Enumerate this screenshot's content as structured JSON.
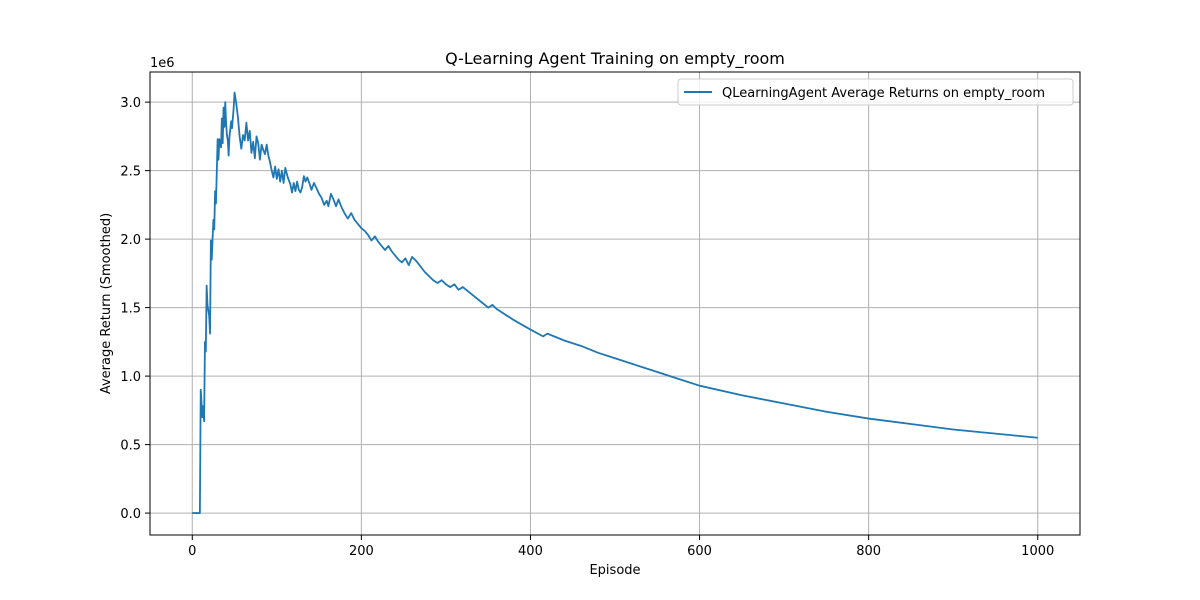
{
  "chart_data": {
    "type": "line",
    "title": "Q-Learning Agent Training on empty_room",
    "xlabel": "Episode",
    "ylabel": "Average Return (Smoothed)",
    "y_scale_label": "1e6",
    "xlim": [
      -50,
      1050
    ],
    "ylim": [
      -0.16,
      3.22
    ],
    "x_ticks": [
      0,
      200,
      400,
      600,
      800,
      1000
    ],
    "x_tick_labels": [
      "0",
      "200",
      "400",
      "600",
      "800",
      "1000"
    ],
    "y_ticks": [
      0.0,
      0.5,
      1.0,
      1.5,
      2.0,
      2.5,
      3.0
    ],
    "y_tick_labels": [
      "0.0",
      "0.5",
      "1.0",
      "1.5",
      "2.0",
      "2.5",
      "3.0"
    ],
    "grid": true,
    "legend_position": "top-right",
    "color": "#1f77b4",
    "series": [
      {
        "name": "QLearningAgent Average Returns on empty_room",
        "points": [
          [
            0,
            0.0
          ],
          [
            9,
            0.0
          ],
          [
            10,
            0.9
          ],
          [
            12,
            0.7
          ],
          [
            13,
            0.78
          ],
          [
            14,
            0.67
          ],
          [
            15,
            1.25
          ],
          [
            16,
            1.18
          ],
          [
            17,
            1.66
          ],
          [
            18,
            1.52
          ],
          [
            20,
            1.44
          ],
          [
            21,
            1.31
          ],
          [
            22,
            1.99
          ],
          [
            23,
            1.85
          ],
          [
            24,
            2.0
          ],
          [
            25,
            2.14
          ],
          [
            26,
            2.07
          ],
          [
            27,
            2.35
          ],
          [
            28,
            2.26
          ],
          [
            30,
            2.73
          ],
          [
            31,
            2.58
          ],
          [
            32,
            2.73
          ],
          [
            34,
            2.67
          ],
          [
            35,
            2.88
          ],
          [
            36,
            2.7
          ],
          [
            37,
            2.96
          ],
          [
            38,
            2.82
          ],
          [
            39,
            3.0
          ],
          [
            40,
            2.85
          ],
          [
            41,
            2.76
          ],
          [
            42,
            2.72
          ],
          [
            43,
            2.61
          ],
          [
            44,
            2.75
          ],
          [
            46,
            2.86
          ],
          [
            47,
            2.81
          ],
          [
            49,
            2.96
          ],
          [
            50,
            3.07
          ],
          [
            52,
            2.99
          ],
          [
            54,
            2.89
          ],
          [
            56,
            2.75
          ],
          [
            58,
            2.66
          ],
          [
            60,
            2.76
          ],
          [
            62,
            2.72
          ],
          [
            64,
            2.85
          ],
          [
            66,
            2.72
          ],
          [
            68,
            2.79
          ],
          [
            70,
            2.63
          ],
          [
            72,
            2.71
          ],
          [
            74,
            2.59
          ],
          [
            76,
            2.75
          ],
          [
            78,
            2.7
          ],
          [
            80,
            2.58
          ],
          [
            82,
            2.69
          ],
          [
            84,
            2.65
          ],
          [
            86,
            2.62
          ],
          [
            88,
            2.69
          ],
          [
            90,
            2.61
          ],
          [
            92,
            2.56
          ],
          [
            94,
            2.5
          ],
          [
            96,
            2.45
          ],
          [
            98,
            2.53
          ],
          [
            100,
            2.44
          ],
          [
            102,
            2.51
          ],
          [
            104,
            2.42
          ],
          [
            106,
            2.5
          ],
          [
            108,
            2.41
          ],
          [
            110,
            2.52
          ],
          [
            113,
            2.45
          ],
          [
            116,
            2.4
          ],
          [
            118,
            2.34
          ],
          [
            120,
            2.41
          ],
          [
            122,
            2.35
          ],
          [
            124,
            2.42
          ],
          [
            126,
            2.36
          ],
          [
            128,
            2.34
          ],
          [
            130,
            2.38
          ],
          [
            132,
            2.46
          ],
          [
            134,
            2.42
          ],
          [
            136,
            2.45
          ],
          [
            139,
            2.4
          ],
          [
            141,
            2.36
          ],
          [
            144,
            2.41
          ],
          [
            147,
            2.37
          ],
          [
            150,
            2.33
          ],
          [
            153,
            2.3
          ],
          [
            156,
            2.25
          ],
          [
            159,
            2.28
          ],
          [
            161,
            2.24
          ],
          [
            164,
            2.33
          ],
          [
            167,
            2.29
          ],
          [
            170,
            2.24
          ],
          [
            173,
            2.29
          ],
          [
            176,
            2.24
          ],
          [
            180,
            2.19
          ],
          [
            184,
            2.15
          ],
          [
            188,
            2.19
          ],
          [
            192,
            2.14
          ],
          [
            196,
            2.11
          ],
          [
            200,
            2.08
          ],
          [
            204,
            2.06
          ],
          [
            208,
            2.03
          ],
          [
            212,
            1.99
          ],
          [
            216,
            2.02
          ],
          [
            220,
            1.98
          ],
          [
            224,
            1.95
          ],
          [
            228,
            1.92
          ],
          [
            232,
            1.95
          ],
          [
            236,
            1.91
          ],
          [
            240,
            1.88
          ],
          [
            244,
            1.85
          ],
          [
            248,
            1.83
          ],
          [
            252,
            1.86
          ],
          [
            256,
            1.81
          ],
          [
            260,
            1.87
          ],
          [
            265,
            1.84
          ],
          [
            270,
            1.8
          ],
          [
            275,
            1.76
          ],
          [
            280,
            1.73
          ],
          [
            285,
            1.7
          ],
          [
            290,
            1.68
          ],
          [
            295,
            1.7
          ],
          [
            300,
            1.67
          ],
          [
            305,
            1.65
          ],
          [
            310,
            1.67
          ],
          [
            315,
            1.63
          ],
          [
            320,
            1.65
          ],
          [
            330,
            1.6
          ],
          [
            340,
            1.55
          ],
          [
            350,
            1.5
          ],
          [
            355,
            1.52
          ],
          [
            360,
            1.49
          ],
          [
            380,
            1.41
          ],
          [
            400,
            1.34
          ],
          [
            415,
            1.29
          ],
          [
            420,
            1.31
          ],
          [
            440,
            1.26
          ],
          [
            460,
            1.22
          ],
          [
            480,
            1.17
          ],
          [
            500,
            1.13
          ],
          [
            520,
            1.09
          ],
          [
            540,
            1.05
          ],
          [
            560,
            1.01
          ],
          [
            580,
            0.97
          ],
          [
            600,
            0.93
          ],
          [
            650,
            0.86
          ],
          [
            700,
            0.8
          ],
          [
            750,
            0.74
          ],
          [
            800,
            0.69
          ],
          [
            850,
            0.65
          ],
          [
            900,
            0.61
          ],
          [
            950,
            0.58
          ],
          [
            1000,
            0.55
          ]
        ]
      }
    ]
  }
}
